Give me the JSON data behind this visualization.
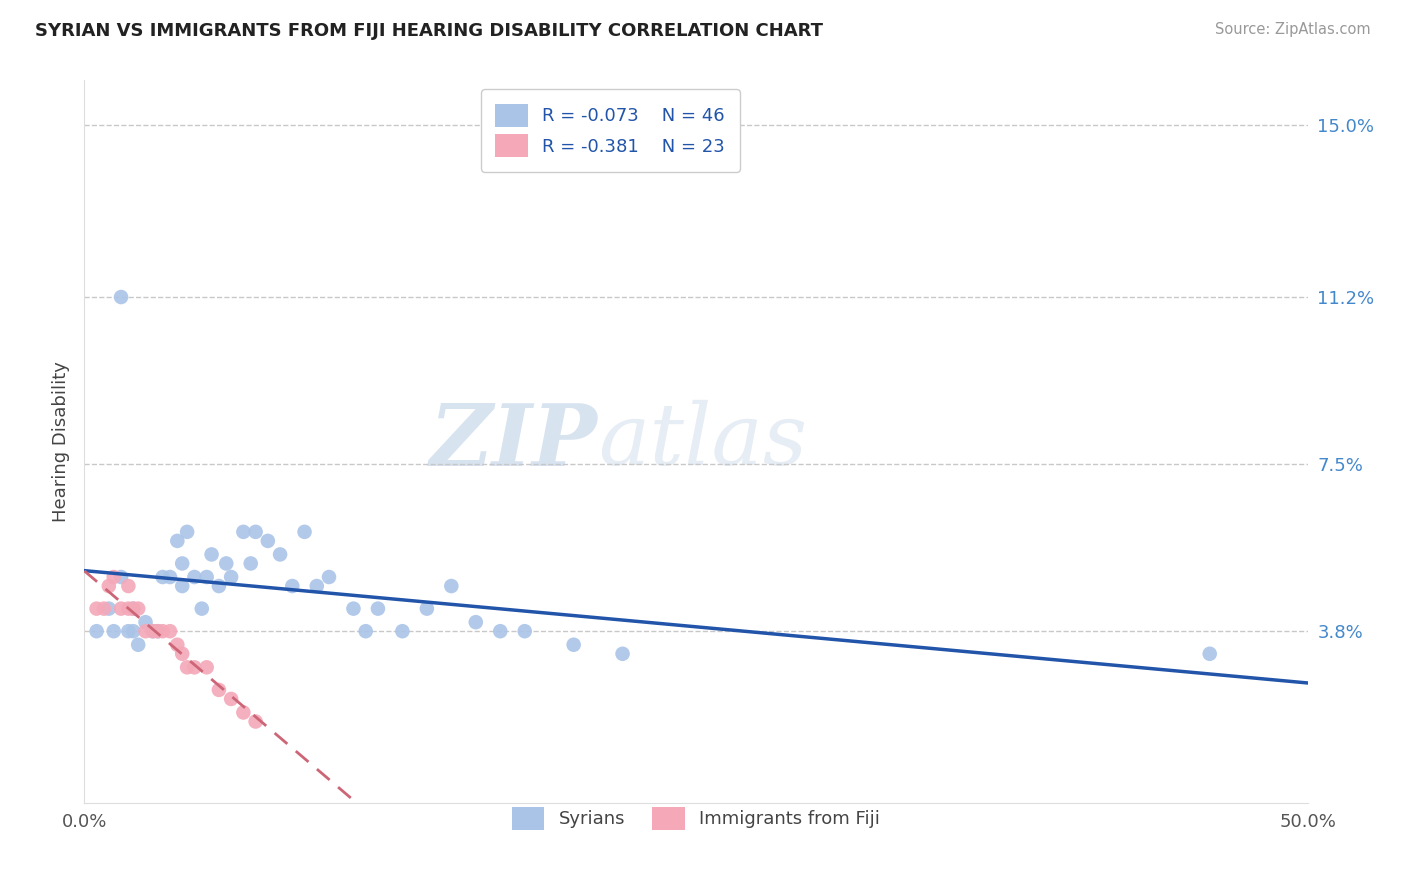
{
  "title": "SYRIAN VS IMMIGRANTS FROM FIJI HEARING DISABILITY CORRELATION CHART",
  "source": "Source: ZipAtlas.com",
  "ylabel": "Hearing Disability",
  "xlim": [
    0.0,
    0.5
  ],
  "ylim": [
    0.0,
    0.16
  ],
  "ytick_labels": [
    "3.8%",
    "7.5%",
    "11.2%",
    "15.0%"
  ],
  "ytick_positions": [
    0.038,
    0.075,
    0.112,
    0.15
  ],
  "grid_color": "#c8c8c8",
  "background_color": "#ffffff",
  "watermark_zip": "ZIP",
  "watermark_atlas": "atlas",
  "legend_R1": "R = -0.073",
  "legend_N1": "N = 46",
  "legend_R2": "R = -0.381",
  "legend_N2": "N = 23",
  "color_syrian": "#aac4e8",
  "color_fiji": "#f4a8b8",
  "line_color_syrian": "#2255aa",
  "line_color_fiji": "#cc6677",
  "tick_color_y": "#4488cc",
  "tick_color_x": "#555555",
  "syrians_x": [
    0.005,
    0.01,
    0.012,
    0.015,
    0.018,
    0.02,
    0.02,
    0.022,
    0.025,
    0.028,
    0.03,
    0.032,
    0.035,
    0.038,
    0.04,
    0.04,
    0.042,
    0.045,
    0.048,
    0.05,
    0.052,
    0.055,
    0.058,
    0.06,
    0.065,
    0.068,
    0.07,
    0.075,
    0.08,
    0.085,
    0.09,
    0.095,
    0.1,
    0.11,
    0.115,
    0.12,
    0.13,
    0.14,
    0.15,
    0.16,
    0.17,
    0.18,
    0.2,
    0.22,
    0.46,
    0.015
  ],
  "syrians_y": [
    0.038,
    0.043,
    0.038,
    0.05,
    0.038,
    0.038,
    0.043,
    0.035,
    0.04,
    0.038,
    0.038,
    0.05,
    0.05,
    0.058,
    0.048,
    0.053,
    0.06,
    0.05,
    0.043,
    0.05,
    0.055,
    0.048,
    0.053,
    0.05,
    0.06,
    0.053,
    0.06,
    0.058,
    0.055,
    0.048,
    0.06,
    0.048,
    0.05,
    0.043,
    0.038,
    0.043,
    0.038,
    0.043,
    0.048,
    0.04,
    0.038,
    0.038,
    0.035,
    0.033,
    0.033,
    0.112
  ],
  "fiji_x": [
    0.005,
    0.008,
    0.01,
    0.012,
    0.015,
    0.018,
    0.018,
    0.02,
    0.022,
    0.025,
    0.028,
    0.03,
    0.032,
    0.035,
    0.038,
    0.04,
    0.042,
    0.045,
    0.05,
    0.055,
    0.06,
    0.065,
    0.07
  ],
  "fiji_y": [
    0.043,
    0.043,
    0.048,
    0.05,
    0.043,
    0.043,
    0.048,
    0.043,
    0.043,
    0.038,
    0.038,
    0.038,
    0.038,
    0.038,
    0.035,
    0.033,
    0.03,
    0.03,
    0.03,
    0.025,
    0.023,
    0.02,
    0.018
  ]
}
